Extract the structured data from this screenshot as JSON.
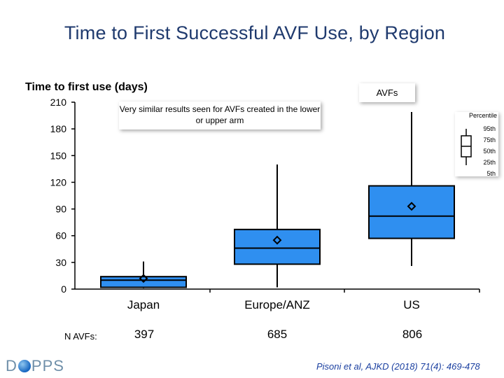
{
  "title": "Time to First Successful AVF Use, by Region",
  "note": "Very similar results seen for AVFs created in the lower or upper arm",
  "series_label": "AVFs",
  "legend": {
    "title": "Percentile",
    "items": [
      "95th",
      "75th",
      "50th",
      "25th",
      "5th"
    ]
  },
  "n_label": "N AVFs:",
  "n_values": [
    "397",
    "685",
    "806"
  ],
  "logo_text_left": "D",
  "logo_text_right": "PPS",
  "citation": "Pisoni et al, AJKD (2018) 71(4): 469-478",
  "colors": {
    "box_fill": "#2f8ff0",
    "box_stroke": "#000000",
    "title": "#1f3a6e",
    "citation": "#1a3fa0"
  },
  "chart_data": {
    "type": "box",
    "ylabel": "Time to first use (days)",
    "ylim": [
      0,
      210
    ],
    "yticks": [
      0,
      30,
      60,
      90,
      120,
      150,
      180,
      210
    ],
    "categories": [
      "Japan",
      "Europe/ANZ",
      "US"
    ],
    "boxes": [
      {
        "category": "Japan",
        "p5": 1,
        "p25": 2,
        "median": 10,
        "p75": 14,
        "p95": 31,
        "mean": 12
      },
      {
        "category": "Europe/ANZ",
        "p5": 2,
        "p25": 28,
        "median": 46,
        "p75": 67,
        "p95": 140,
        "mean": 55
      },
      {
        "category": "US",
        "p5": 26,
        "p25": 57,
        "median": 82,
        "p75": 116,
        "p95": 199,
        "mean": 93
      }
    ],
    "grid": false,
    "legend_position": "right"
  }
}
